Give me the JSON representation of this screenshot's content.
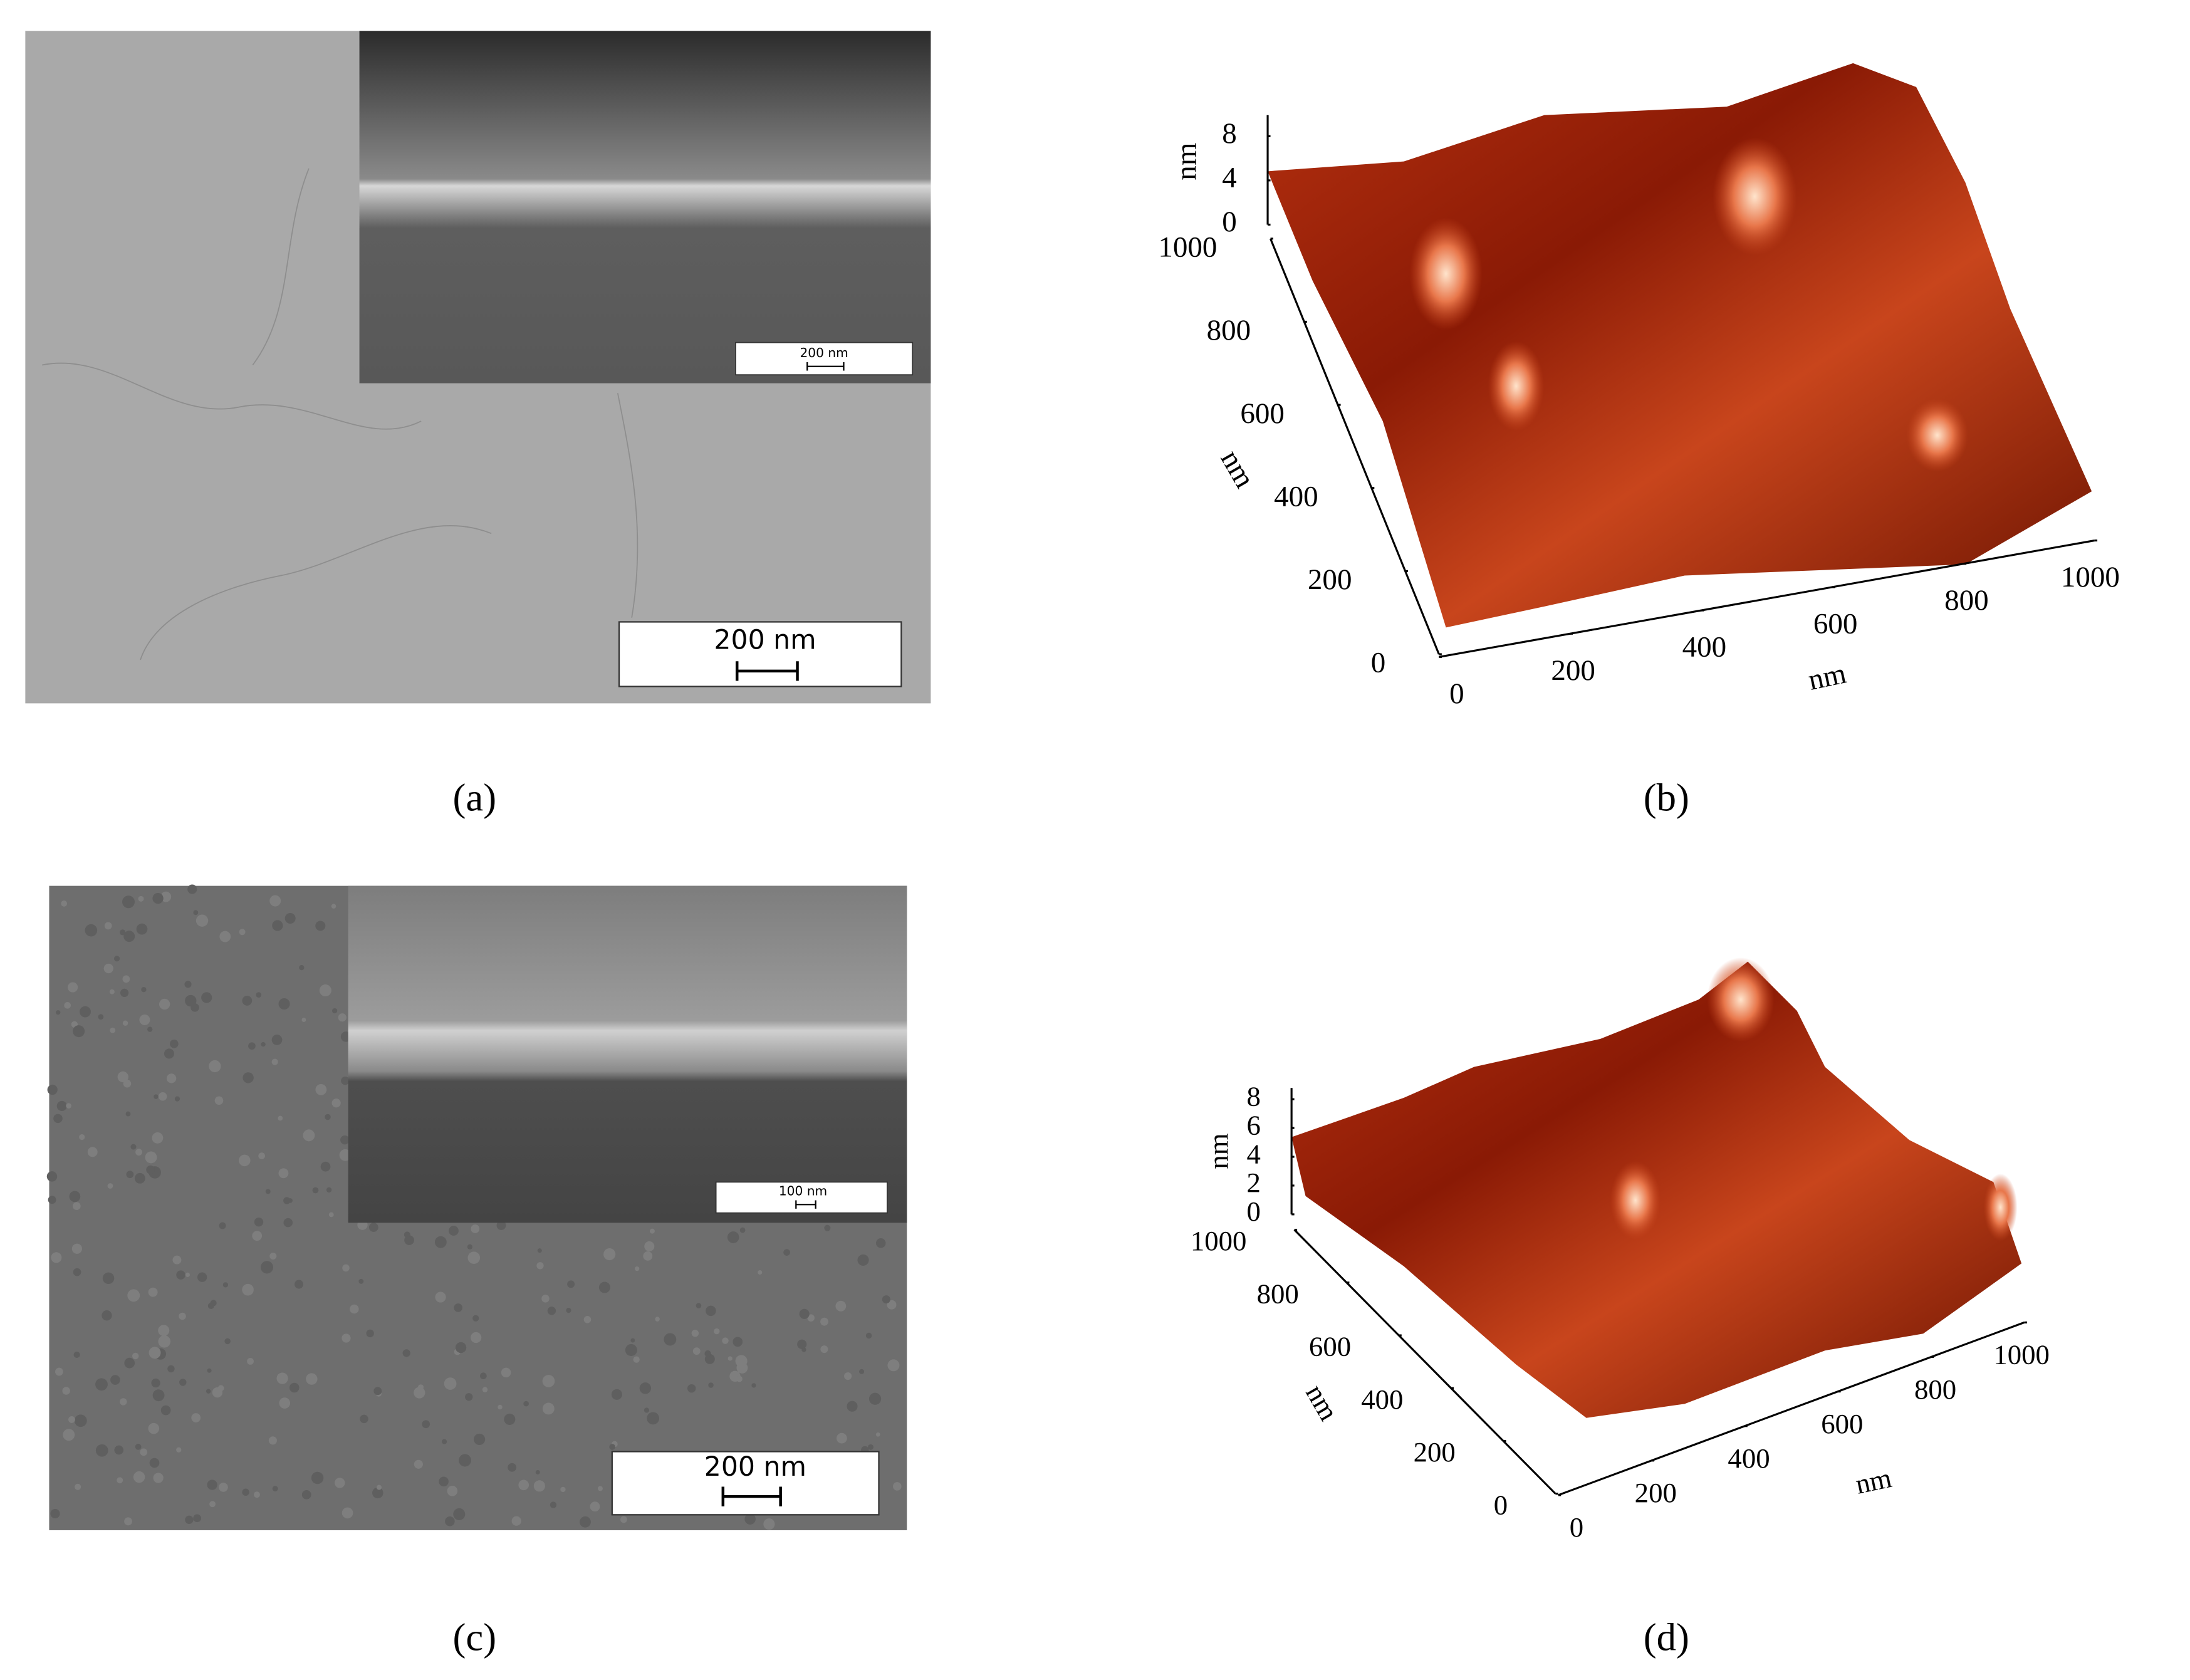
{
  "panels": [
    {
      "label": "(a)",
      "scale_bar": "200 nm",
      "inset_scale_bar": "200 nm"
    },
    {
      "label": "(b)",
      "z_axis": {
        "label": "nm",
        "ticks": [
          0,
          4,
          8
        ]
      },
      "y_axis": {
        "label": "nm",
        "ticks": [
          0,
          200,
          400,
          600,
          800,
          1000
        ]
      },
      "x_axis": {
        "label": "nm",
        "ticks": [
          0,
          200,
          400,
          600,
          800,
          1000
        ]
      }
    },
    {
      "label": "(c)",
      "scale_bar": "200 nm",
      "inset_scale_bar": "100 nm"
    },
    {
      "label": "(d)",
      "z_axis": {
        "label": "nm",
        "ticks": [
          0,
          2,
          4,
          6,
          8
        ]
      },
      "y_axis": {
        "label": "nm",
        "ticks": [
          0,
          200,
          400,
          600,
          800,
          1000
        ]
      },
      "x_axis": {
        "label": "nm",
        "ticks": [
          0,
          200,
          400,
          600,
          800,
          1000
        ]
      }
    }
  ]
}
